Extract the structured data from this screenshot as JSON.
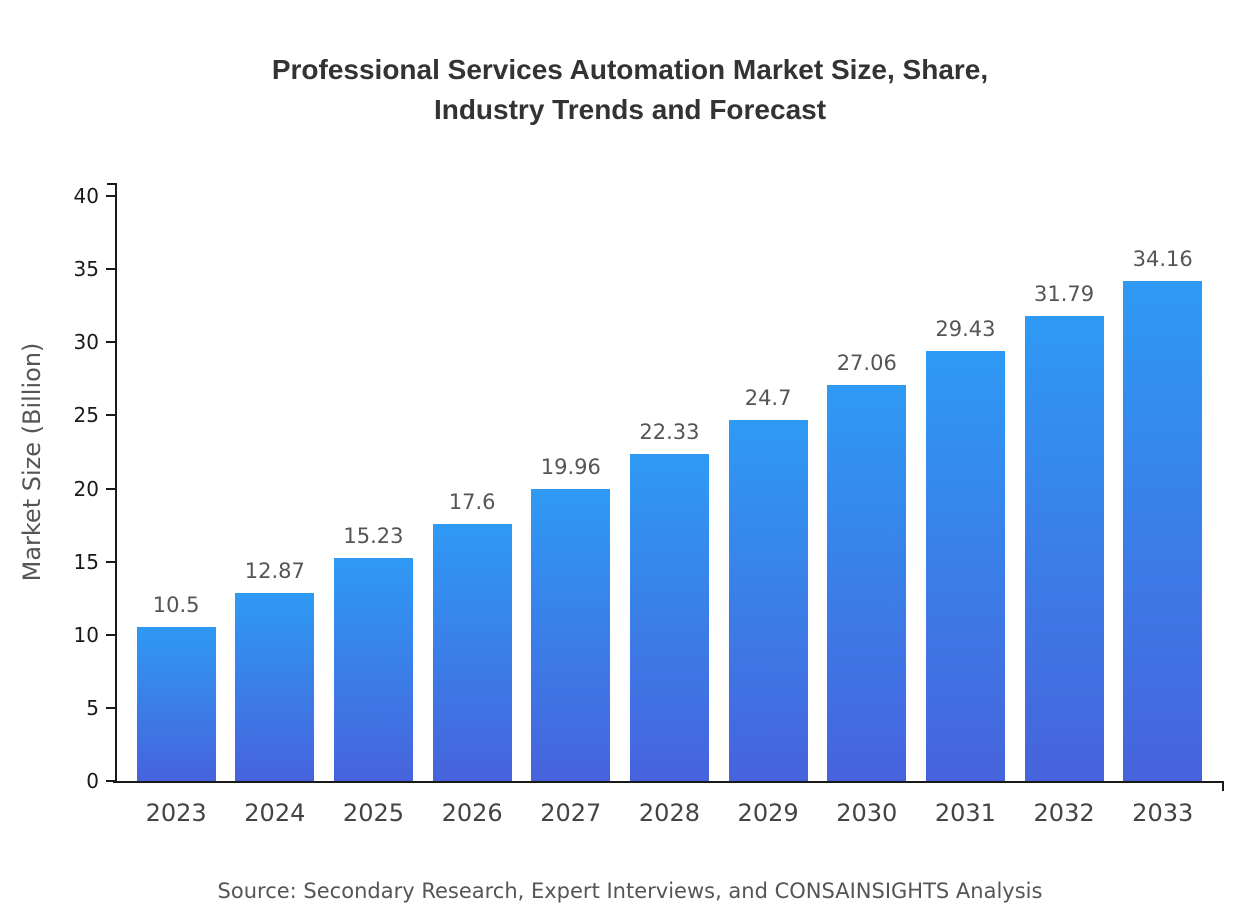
{
  "title": {
    "line1": "Professional Services Automation Market Size, Share,",
    "line2": "Industry Trends and Forecast"
  },
  "source": "Source: Secondary Research, Expert Interviews, and CONSAINSIGHTS Analysis",
  "chart_data": {
    "type": "bar",
    "title": "Professional Services Automation Market Size, Share, Industry Trends and Forecast",
    "categories": [
      "2023",
      "2024",
      "2025",
      "2026",
      "2027",
      "2028",
      "2029",
      "2030",
      "2031",
      "2032",
      "2033"
    ],
    "values": [
      10.5,
      12.87,
      15.23,
      17.6,
      19.96,
      22.33,
      24.7,
      27.06,
      29.43,
      31.79,
      34.16
    ],
    "xlabel": "",
    "ylabel": "Market Size (Billion)",
    "ylim": [
      0,
      40
    ],
    "yticks": [
      0,
      5,
      10,
      15,
      20,
      25,
      30,
      35,
      40
    ],
    "grid": false,
    "legend": false,
    "colors": {
      "bar_top": "#2E9AF4",
      "bar_bottom": "#4763DC",
      "axis": "#1a1a1a",
      "title_text": "#333333",
      "label_text": "#555555"
    }
  }
}
